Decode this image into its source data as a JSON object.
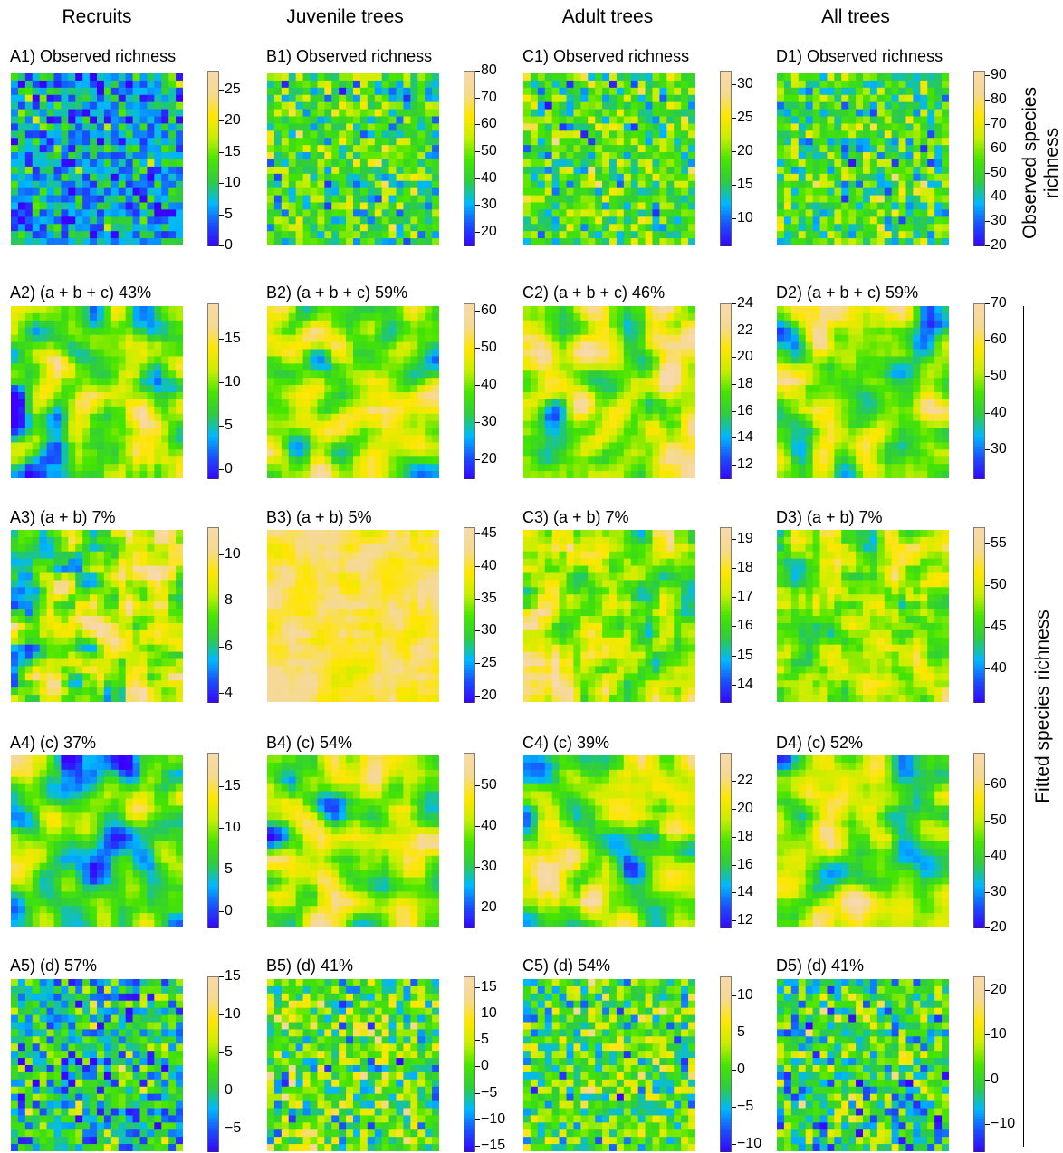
{
  "figure": {
    "columns": [
      "Recruits",
      "Juvenile trees",
      "Adult trees",
      "All trees"
    ],
    "row_labels": {
      "observed": "Observed species richness",
      "fitted": "Fitted species richness"
    }
  },
  "chart_data": [
    {
      "id": "A1",
      "type": "heatmap",
      "title": "A1) Observed richness",
      "grid": [
        24,
        24
      ],
      "colorbar": {
        "min": 0,
        "max": 28,
        "ticks": [
          0,
          5,
          10,
          15,
          20,
          25
        ],
        "labels": [
          "0",
          "5",
          "10",
          "15",
          "20",
          "25"
        ]
      },
      "value_mean": 7,
      "value_spread": 4,
      "smooth": 0
    },
    {
      "id": "B1",
      "type": "heatmap",
      "title": "B1) Observed richness",
      "grid": [
        24,
        24
      ],
      "colorbar": {
        "min": 15,
        "max": 80,
        "ticks": [
          20,
          30,
          40,
          50,
          60,
          70,
          80
        ],
        "labels": [
          "20",
          "30",
          "40",
          "50",
          "60",
          "70",
          "80"
        ]
      },
      "value_mean": 44,
      "value_spread": 10,
      "smooth": 0
    },
    {
      "id": "C1",
      "type": "heatmap",
      "title": "C1) Observed richness",
      "grid": [
        24,
        24
      ],
      "colorbar": {
        "min": 6,
        "max": 32,
        "ticks": [
          10,
          15,
          20,
          25,
          30
        ],
        "labels": [
          "10",
          "15",
          "20",
          "25",
          "30"
        ]
      },
      "value_mean": 18,
      "value_spread": 4,
      "smooth": 0
    },
    {
      "id": "D1",
      "type": "heatmap",
      "title": "D1) Observed richness",
      "grid": [
        24,
        24
      ],
      "colorbar": {
        "min": 20,
        "max": 92,
        "ticks": [
          20,
          30,
          40,
          50,
          60,
          70,
          80,
          90
        ],
        "labels": [
          "20",
          "30",
          "40",
          "50",
          "60",
          "70",
          "80",
          "90"
        ]
      },
      "value_mean": 52,
      "value_spread": 11,
      "smooth": 0
    },
    {
      "id": "A2",
      "type": "heatmap",
      "title": "A2) (a + b + c) 43%",
      "grid": [
        24,
        24
      ],
      "colorbar": {
        "min": -1,
        "max": 19,
        "ticks": [
          0,
          5,
          10,
          15
        ],
        "labels": [
          "0",
          "5",
          "10",
          "15"
        ]
      },
      "value_mean": 9,
      "value_spread": 3.6,
      "smooth": 2
    },
    {
      "id": "B2",
      "type": "heatmap",
      "title": "B2) (a + b + c) 59%",
      "grid": [
        24,
        24
      ],
      "colorbar": {
        "min": 15,
        "max": 62,
        "ticks": [
          20,
          30,
          40,
          50,
          60
        ],
        "labels": [
          "20",
          "30",
          "40",
          "50",
          "60"
        ]
      },
      "value_mean": 42,
      "value_spread": 7,
      "smooth": 2
    },
    {
      "id": "C2",
      "type": "heatmap",
      "title": "C2) (a + b + c) 46%",
      "grid": [
        24,
        24
      ],
      "colorbar": {
        "min": 11,
        "max": 24,
        "ticks": [
          12,
          14,
          16,
          18,
          20,
          22,
          24
        ],
        "labels": [
          "12",
          "14",
          "16",
          "18",
          "20",
          "22",
          "24"
        ]
      },
      "value_mean": 19,
      "value_spread": 2.2,
      "smooth": 2
    },
    {
      "id": "D2",
      "type": "heatmap",
      "title": "D2) (a + b + c) 59%",
      "grid": [
        24,
        24
      ],
      "colorbar": {
        "min": 22,
        "max": 70,
        "ticks": [
          30,
          40,
          50,
          60,
          70
        ],
        "labels": [
          "30",
          "40",
          "50",
          "60",
          "70"
        ]
      },
      "value_mean": 48,
      "value_spread": 8,
      "smooth": 2
    },
    {
      "id": "A3",
      "type": "heatmap",
      "title": "A3) (a + b) 7%",
      "grid": [
        24,
        24
      ],
      "colorbar": {
        "min": 3.6,
        "max": 11.2,
        "ticks": [
          4,
          6,
          8,
          10
        ],
        "labels": [
          "4",
          "6",
          "8",
          "10"
        ]
      },
      "value_mean": 8,
      "value_spread": 1.3,
      "smooth": 1,
      "gradient": 1.8
    },
    {
      "id": "B3",
      "type": "heatmap",
      "title": "B3) (a + b) 5%",
      "grid": [
        24,
        24
      ],
      "colorbar": {
        "min": 19,
        "max": 46,
        "ticks": [
          20,
          25,
          30,
          35,
          40,
          45
        ],
        "labels": [
          "20",
          "25",
          "30",
          "35",
          "40",
          "45"
        ]
      },
      "value_mean": 41,
      "value_spread": 1.5,
      "smooth": 1
    },
    {
      "id": "C3",
      "type": "heatmap",
      "title": "C3) (a + b) 7%",
      "grid": [
        24,
        24
      ],
      "colorbar": {
        "min": 13.4,
        "max": 19.4,
        "ticks": [
          14,
          15,
          16,
          17,
          18,
          19
        ],
        "labels": [
          "14",
          "15",
          "16",
          "17",
          "18",
          "19"
        ]
      },
      "value_mean": 17,
      "value_spread": 0.8,
      "smooth": 1,
      "gradient": -1.4
    },
    {
      "id": "D3",
      "type": "heatmap",
      "title": "D3) (a + b) 7%",
      "grid": [
        24,
        24
      ],
      "colorbar": {
        "min": 36,
        "max": 57,
        "ticks": [
          40,
          45,
          50,
          55
        ],
        "labels": [
          "40",
          "45",
          "50",
          "55"
        ]
      },
      "value_mean": 48,
      "value_spread": 2.5,
      "smooth": 1,
      "gradient": 1.5
    },
    {
      "id": "A4",
      "type": "heatmap",
      "title": "A4) (c) 37%",
      "grid": [
        24,
        24
      ],
      "colorbar": {
        "min": -2,
        "max": 19,
        "ticks": [
          0,
          5,
          10,
          15
        ],
        "labels": [
          "0",
          "5",
          "10",
          "15"
        ]
      },
      "value_mean": 7,
      "value_spread": 3.6,
      "smooth": 2
    },
    {
      "id": "B4",
      "type": "heatmap",
      "title": "B4) (c) 54%",
      "grid": [
        24,
        24
      ],
      "colorbar": {
        "min": 15,
        "max": 58,
        "ticks": [
          20,
          30,
          40,
          50
        ],
        "labels": [
          "20",
          "30",
          "40",
          "50"
        ]
      },
      "value_mean": 40,
      "value_spread": 7,
      "smooth": 2
    },
    {
      "id": "C4",
      "type": "heatmap",
      "title": "C4) (c) 39%",
      "grid": [
        24,
        24
      ],
      "colorbar": {
        "min": 11.5,
        "max": 24,
        "ticks": [
          12,
          14,
          16,
          18,
          20,
          22
        ],
        "labels": [
          "12",
          "14",
          "16",
          "18",
          "20",
          "22"
        ]
      },
      "value_mean": 18.5,
      "value_spread": 2.2,
      "smooth": 2
    },
    {
      "id": "D4",
      "type": "heatmap",
      "title": "D4) (c) 52%",
      "grid": [
        24,
        24
      ],
      "colorbar": {
        "min": 20,
        "max": 69,
        "ticks": [
          20,
          30,
          40,
          50,
          60
        ],
        "labels": [
          "20",
          "30",
          "40",
          "50",
          "60"
        ]
      },
      "value_mean": 47,
      "value_spread": 8,
      "smooth": 2
    },
    {
      "id": "A5",
      "type": "heatmap",
      "title": "A5) (d) 57%",
      "grid": [
        24,
        24
      ],
      "colorbar": {
        "min": -8,
        "max": 15,
        "ticks": [
          -5,
          0,
          5,
          10,
          15
        ],
        "labels": [
          "−5",
          "0",
          "5",
          "10",
          "15"
        ]
      },
      "value_mean": 0,
      "value_spread": 4,
      "smooth": 0
    },
    {
      "id": "B5",
      "type": "heatmap",
      "title": "B5) (d) 41%",
      "grid": [
        24,
        24
      ],
      "colorbar": {
        "min": -16,
        "max": 17,
        "ticks": [
          -15,
          -10,
          -5,
          0,
          5,
          10,
          15
        ],
        "labels": [
          "−15",
          "−10",
          "−5",
          "0",
          "5",
          "10",
          "15"
        ]
      },
      "value_mean": 0,
      "value_spread": 6,
      "smooth": 0
    },
    {
      "id": "C5",
      "type": "heatmap",
      "title": "C5) (d) 54%",
      "grid": [
        24,
        24
      ],
      "colorbar": {
        "min": -11,
        "max": 12.5,
        "ticks": [
          -10,
          -5,
          0,
          5,
          10
        ],
        "labels": [
          "−10",
          "−5",
          "0",
          "5",
          "10"
        ]
      },
      "value_mean": 0,
      "value_spread": 4,
      "smooth": 0
    },
    {
      "id": "D5",
      "type": "heatmap",
      "title": "D5) (d) 41%",
      "grid": [
        24,
        24
      ],
      "colorbar": {
        "min": -16,
        "max": 23,
        "ticks": [
          -10,
          0,
          10,
          20
        ],
        "labels": [
          "−10",
          "0",
          "10",
          "20"
        ]
      },
      "value_mean": 0,
      "value_spread": 7,
      "smooth": 0
    }
  ],
  "colormap": [
    "#3a00ff",
    "#1a4cff",
    "#00b8ff",
    "#2ecc40",
    "#46e500",
    "#c8ee00",
    "#ffe600",
    "#f5d98f",
    "#f8d9a9"
  ]
}
